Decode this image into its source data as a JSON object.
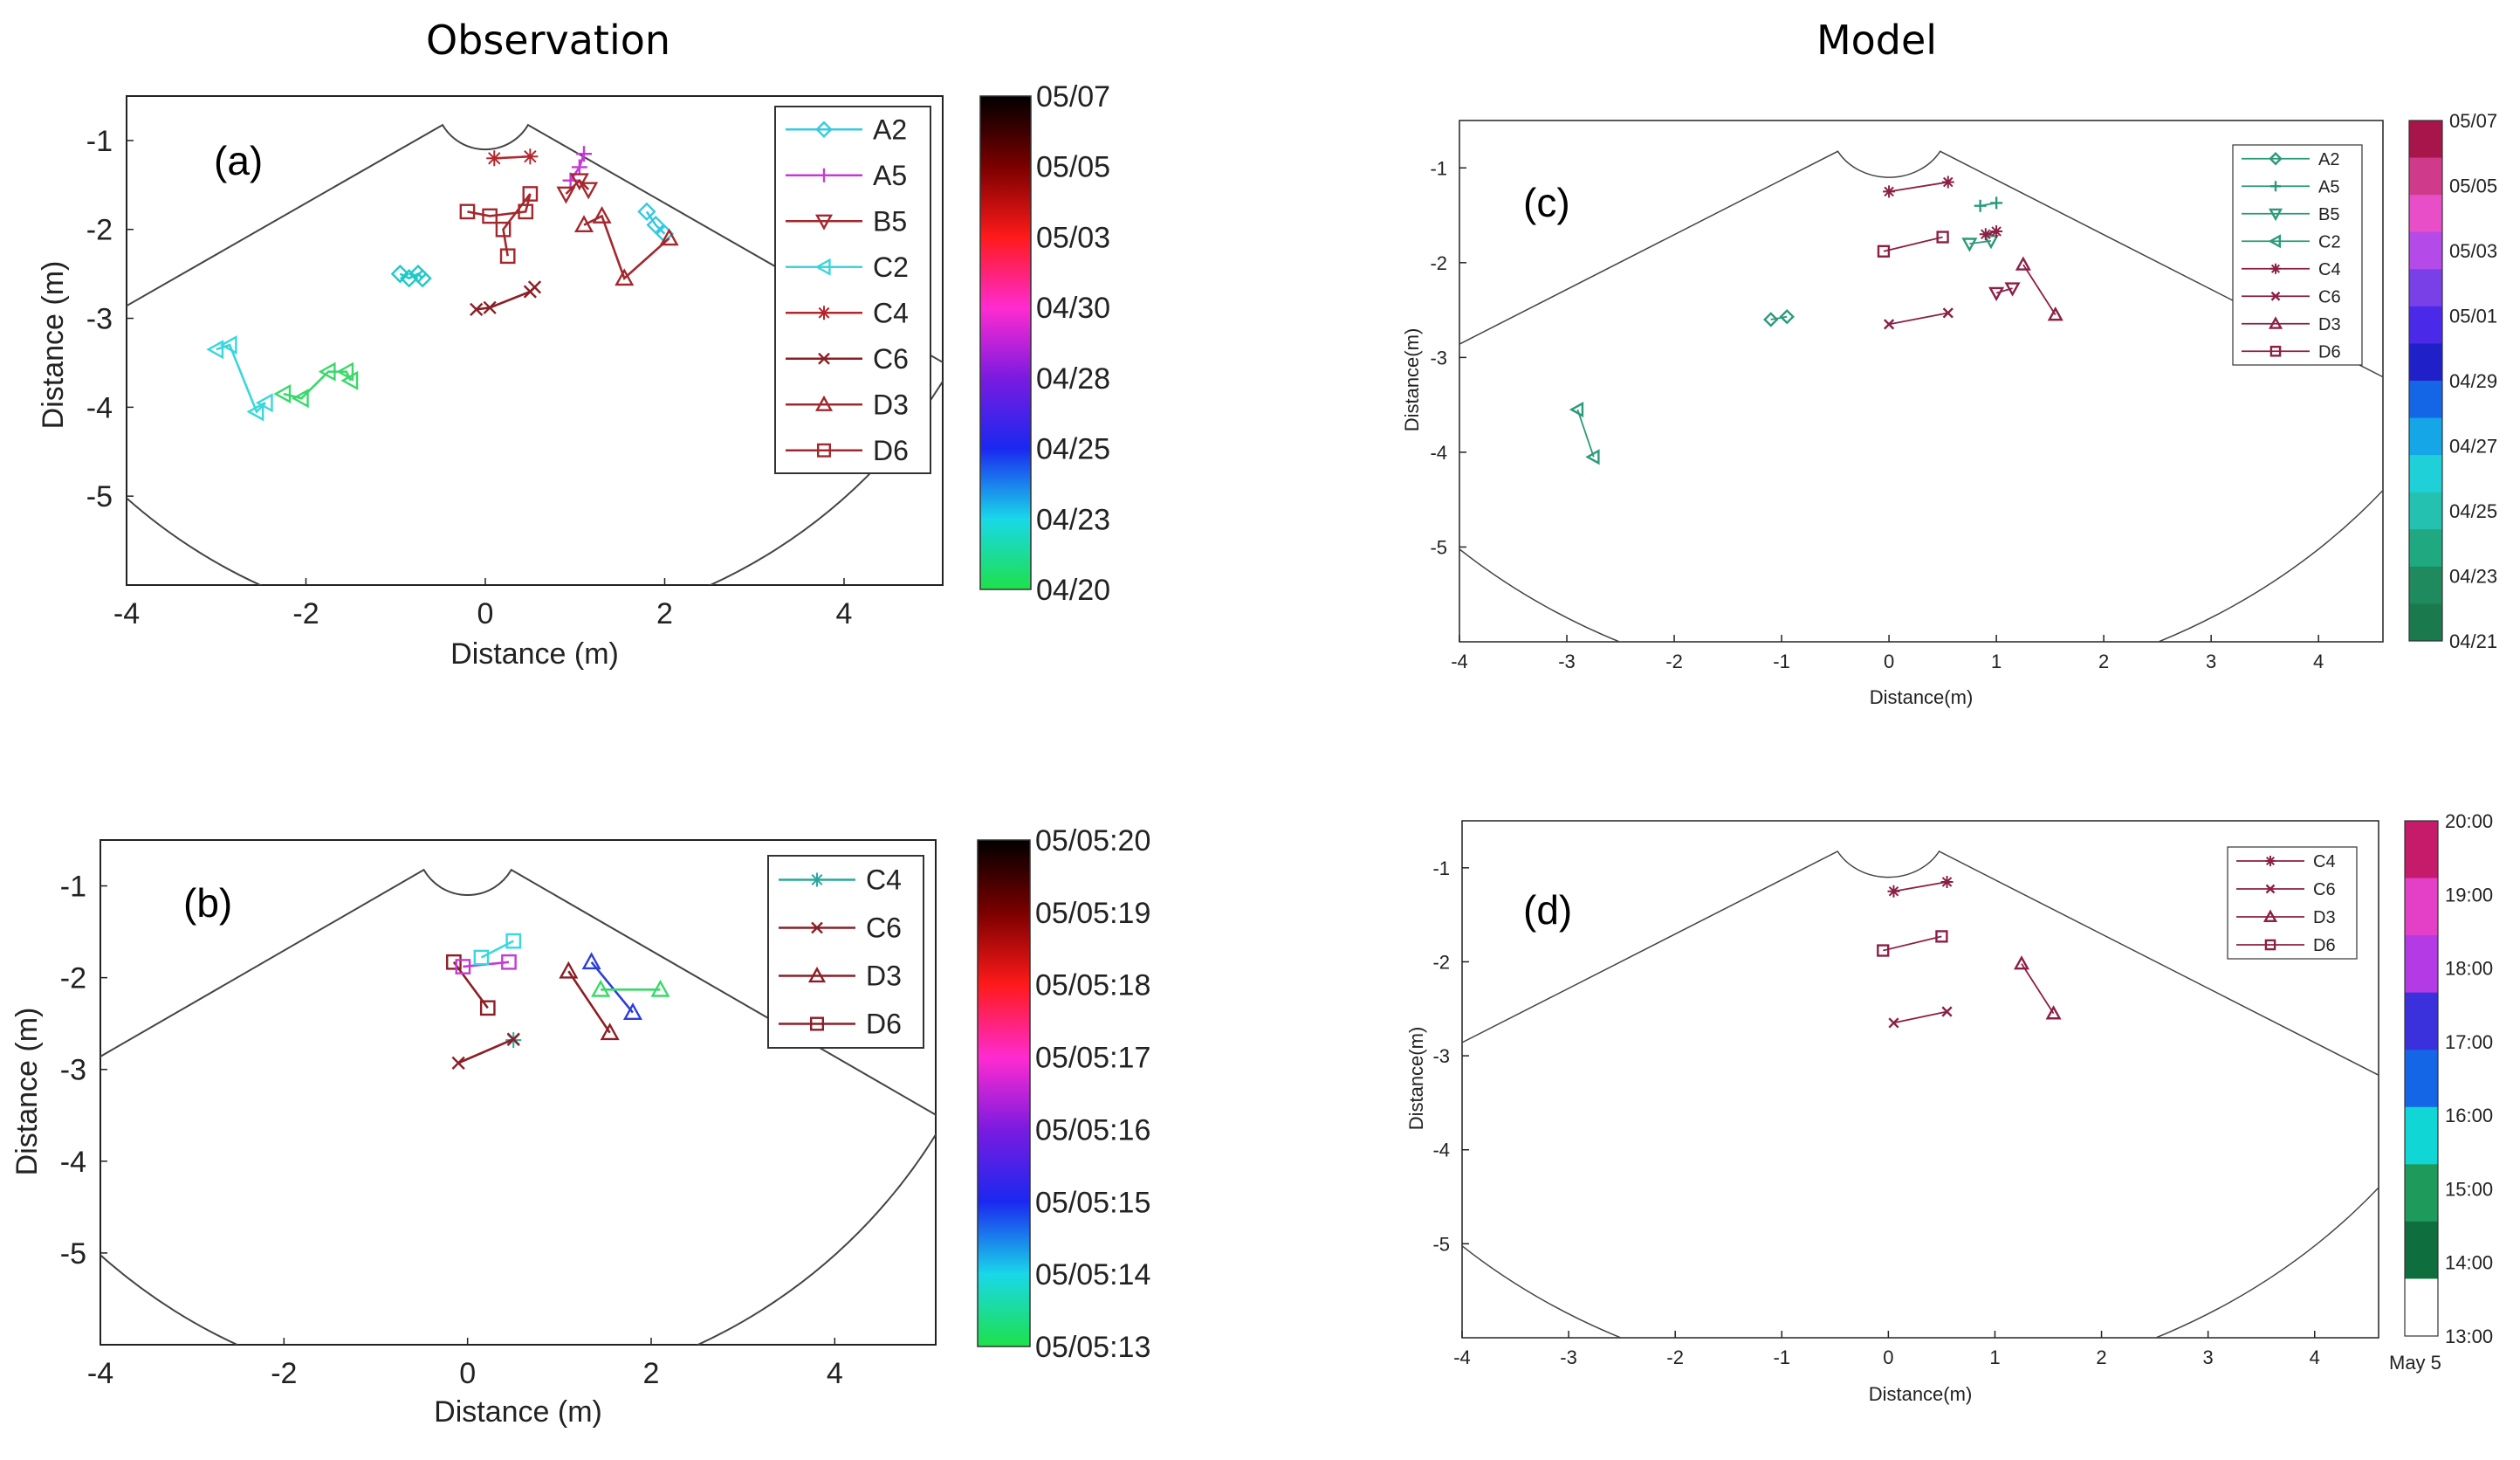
{
  "titles": {
    "left": "Observation",
    "right": "Model"
  },
  "chart_data": [
    {
      "id": "a",
      "type": "scatter",
      "panel_label": "(a)",
      "xlabel": "Distance (m)",
      "ylabel": "Distance (m)",
      "xlim": [
        -4,
        5.1
      ],
      "ylim": [
        -6,
        -0.5
      ],
      "xticks": [
        "-4",
        "-2",
        "0",
        "2",
        "4"
      ],
      "yticks": [
        "-1",
        "-2",
        "-3",
        "-4",
        "-5"
      ],
      "legend_position": "top-right",
      "colorbar": {
        "type": "gradient",
        "labels": [
          "05/07",
          "05/05",
          "05/03",
          "04/30",
          "04/28",
          "04/25",
          "04/23",
          "04/20"
        ]
      },
      "series": [
        {
          "name": "A2",
          "marker": "diamond",
          "color": "#38c9e0",
          "x": [
            1.8,
            1.9,
            2.0
          ],
          "y": [
            -1.8,
            -1.95,
            -2.05
          ]
        },
        {
          "name": "A5",
          "marker": "plus",
          "color": "#c43ad6",
          "x": [
            0.95,
            1.05,
            1.1
          ],
          "y": [
            -1.45,
            -1.3,
            -1.15
          ]
        },
        {
          "name": "B5",
          "marker": "triangle-down",
          "color": "#a3282e",
          "x": [
            0.9,
            1.05,
            1.15
          ],
          "y": [
            -1.6,
            -1.45,
            -1.55
          ]
        },
        {
          "name": "C2",
          "marker": "triangle-left",
          "color": "#38d6dd",
          "x": [
            -3.0,
            -2.85,
            -2.55,
            -2.45
          ],
          "y": [
            -3.35,
            -3.3,
            -4.05,
            -3.95
          ]
        },
        {
          "name": "C2",
          "marker": "triangle-left",
          "color": "#3ad86a",
          "x": [
            -2.25,
            -2.05,
            -1.75,
            -1.55,
            -1.5
          ],
          "y": [
            -3.85,
            -3.9,
            -3.6,
            -3.6,
            -3.7
          ]
        },
        {
          "name": "C4",
          "marker": "asterisk",
          "color": "#b3282e",
          "x": [
            0.1,
            0.5
          ],
          "y": [
            -1.2,
            -1.18
          ]
        },
        {
          "name": "C6",
          "marker": "x",
          "color": "#8b1f25",
          "x": [
            -0.1,
            0.05,
            0.5,
            0.55
          ],
          "y": [
            -2.9,
            -2.88,
            -2.7,
            -2.65
          ]
        },
        {
          "name": "D3",
          "marker": "triangle-up",
          "color": "#a3282e",
          "x": [
            1.1,
            1.3,
            1.55,
            2.05
          ],
          "y": [
            -1.95,
            -1.85,
            -2.55,
            -2.1
          ]
        },
        {
          "name": "D6",
          "marker": "square",
          "color": "#a3282e",
          "x": [
            -0.2,
            0.05,
            0.45,
            0.5,
            0.2,
            0.25
          ],
          "y": [
            -1.8,
            -1.85,
            -1.8,
            -1.6,
            -2.0,
            -2.3
          ]
        },
        {
          "name": "",
          "marker": "diamond",
          "color": "#20c9c9",
          "x": [
            -0.95,
            -0.85,
            -0.75,
            -0.7
          ],
          "y": [
            -2.5,
            -2.55,
            -2.5,
            -2.55
          ]
        }
      ]
    },
    {
      "id": "b",
      "type": "scatter",
      "panel_label": "(b)",
      "xlabel": "Distance (m)",
      "ylabel": "Distance (m)",
      "xlim": [
        -4,
        5.1
      ],
      "ylim": [
        -6,
        -0.5
      ],
      "xticks": [
        "-4",
        "-2",
        "0",
        "2",
        "4"
      ],
      "yticks": [
        "-1",
        "-2",
        "-3",
        "-4",
        "-5"
      ],
      "legend_position": "top-right",
      "colorbar": {
        "type": "gradient",
        "labels": [
          "05/05:20",
          "05/05:19",
          "05/05:18",
          "05/05:17",
          "05/05:16",
          "05/05:15",
          "05/05:14",
          "05/05:13"
        ]
      },
      "series": [
        {
          "name": "C4",
          "marker": "asterisk",
          "color": "#2aa8a0",
          "x": [
            0.5
          ],
          "y": [
            -2.68
          ]
        },
        {
          "name": "C6",
          "marker": "x",
          "color": "#8b1f25",
          "x": [
            -0.1,
            0.5
          ],
          "y": [
            -2.93,
            -2.67
          ]
        },
        {
          "name": "D3",
          "marker": "triangle-up",
          "color": "#8b1f25",
          "x": [
            1.1,
            1.55
          ],
          "y": [
            -1.93,
            -2.6
          ]
        },
        {
          "name": "D3",
          "marker": "triangle-up",
          "color": "#2b3fd6",
          "x": [
            1.35,
            1.8
          ],
          "y": [
            -1.83,
            -2.38
          ]
        },
        {
          "name": "D3",
          "marker": "triangle-up",
          "color": "#3bd86a",
          "x": [
            1.45,
            2.1
          ],
          "y": [
            -2.13,
            -2.13
          ]
        },
        {
          "name": "D6",
          "marker": "square",
          "color": "#8b1f25",
          "x": [
            -0.15,
            0.22
          ],
          "y": [
            -1.83,
            -2.33
          ]
        },
        {
          "name": "D6",
          "marker": "square",
          "color": "#c43ad6",
          "x": [
            -0.05,
            0.45
          ],
          "y": [
            -1.88,
            -1.83
          ]
        },
        {
          "name": "D6",
          "marker": "square",
          "color": "#38d8e0",
          "x": [
            0.15,
            0.5
          ],
          "y": [
            -1.78,
            -1.6
          ]
        }
      ]
    },
    {
      "id": "c",
      "type": "scatter",
      "panel_label": "(c)",
      "xlabel": "Distance(m)",
      "ylabel": "Distance(m)",
      "xlim": [
        -4,
        4.6
      ],
      "ylim": [
        -6,
        -0.5
      ],
      "xticks": [
        "-4",
        "-3",
        "-2",
        "-1",
        "0",
        "1",
        "2",
        "3",
        "4"
      ],
      "yticks": [
        "-1",
        "-2",
        "-3",
        "-4",
        "-5"
      ],
      "legend_position": "top-right",
      "colorbar": {
        "type": "discrete",
        "labels": [
          "05/07",
          "05/05",
          "05/03",
          "05/01",
          "04/29",
          "04/27",
          "04/25",
          "04/23",
          "04/21"
        ]
      },
      "series": [
        {
          "name": "A2",
          "marker": "diamond",
          "color": "#2a9a7a",
          "x": [
            -1.1,
            -0.95
          ],
          "y": [
            -2.6,
            -2.57
          ]
        },
        {
          "name": "A5",
          "marker": "plus",
          "color": "#2a9a7a",
          "x": [
            0.85,
            1.0
          ],
          "y": [
            -1.4,
            -1.37
          ]
        },
        {
          "name": "B5",
          "marker": "triangle-down",
          "color": "#2a9a7a",
          "x": [
            0.75,
            0.95
          ],
          "y": [
            -1.8,
            -1.77
          ]
        },
        {
          "name": "B5",
          "marker": "triangle-down",
          "color": "#8b1f45",
          "x": [
            1.0,
            1.15
          ],
          "y": [
            -2.32,
            -2.27
          ]
        },
        {
          "name": "C2",
          "marker": "triangle-left",
          "color": "#2a9a7a",
          "x": [
            -2.9,
            -2.75
          ],
          "y": [
            -3.55,
            -4.05
          ]
        },
        {
          "name": "C4",
          "marker": "asterisk",
          "color": "#8b1f45",
          "x": [
            0.0,
            0.55
          ],
          "y": [
            -1.25,
            -1.15
          ]
        },
        {
          "name": "C4",
          "marker": "asterisk",
          "color": "#8b1f45",
          "x": [
            0.9,
            1.0
          ],
          "y": [
            -1.7,
            -1.67
          ]
        },
        {
          "name": "C6",
          "marker": "x",
          "color": "#8b1f45",
          "x": [
            0.0,
            0.55
          ],
          "y": [
            -2.65,
            -2.53
          ]
        },
        {
          "name": "D3",
          "marker": "triangle-up",
          "color": "#8b1f45",
          "x": [
            1.25,
            1.55
          ],
          "y": [
            -2.02,
            -2.55
          ]
        },
        {
          "name": "D6",
          "marker": "square",
          "color": "#8b1f45",
          "x": [
            -0.05,
            0.5
          ],
          "y": [
            -1.88,
            -1.73
          ]
        }
      ]
    },
    {
      "id": "d",
      "type": "scatter",
      "panel_label": "(d)",
      "xlabel": "Distance(m)",
      "ylabel": "Distance(m)",
      "xlim": [
        -4,
        4.6
      ],
      "ylim": [
        -6,
        -0.5
      ],
      "xticks": [
        "-4",
        "-3",
        "-2",
        "-1",
        "0",
        "1",
        "2",
        "3",
        "4"
      ],
      "yticks": [
        "-1",
        "-2",
        "-3",
        "-4",
        "-5"
      ],
      "legend_position": "top-right",
      "colorbar": {
        "type": "discrete",
        "labels": [
          "20:00",
          "19:00",
          "18:00",
          "17:00",
          "16:00",
          "15:00",
          "14:00",
          "13:00"
        ],
        "footer": "May 5"
      },
      "series": [
        {
          "name": "C4",
          "marker": "asterisk",
          "color": "#8b1f45",
          "x": [
            0.05,
            0.55
          ],
          "y": [
            -1.25,
            -1.15
          ]
        },
        {
          "name": "C6",
          "marker": "x",
          "color": "#8b1f45",
          "x": [
            0.05,
            0.55
          ],
          "y": [
            -2.65,
            -2.53
          ]
        },
        {
          "name": "D3",
          "marker": "triangle-up",
          "color": "#8b1f45",
          "x": [
            1.25,
            1.55
          ],
          "y": [
            -2.02,
            -2.55
          ]
        },
        {
          "name": "D6",
          "marker": "square",
          "color": "#8b1f45",
          "x": [
            -0.05,
            0.5
          ],
          "y": [
            -1.88,
            -1.73
          ]
        }
      ]
    }
  ]
}
